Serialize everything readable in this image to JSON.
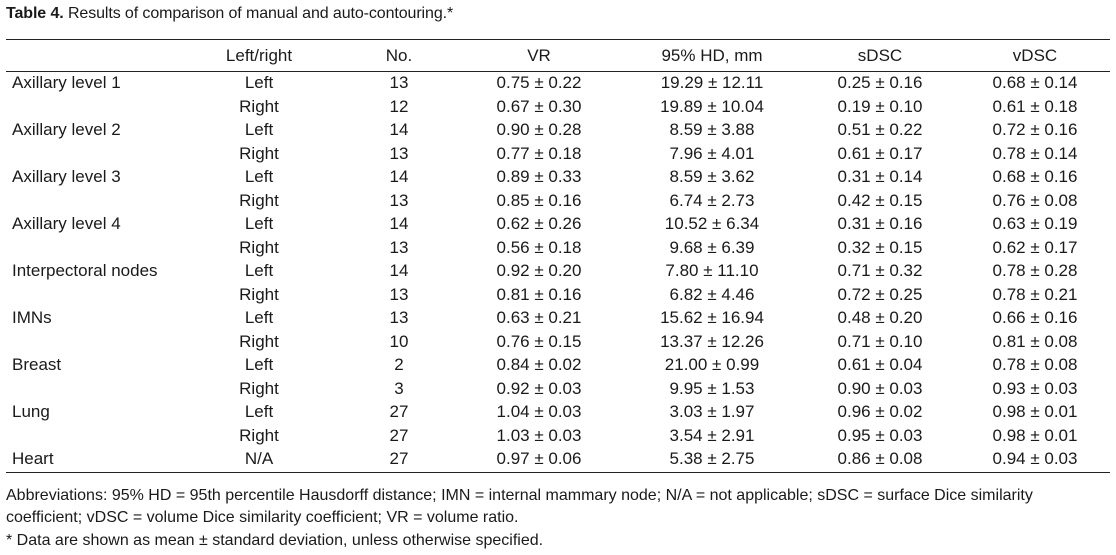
{
  "caption": {
    "label": "Table 4.",
    "text": " Results of comparison of manual and auto-contouring.*"
  },
  "columns": [
    "",
    "Left/right",
    "No.",
    "VR",
    "95% HD, mm",
    "sDSC",
    "vDSC"
  ],
  "rows": [
    {
      "structure": "Axillary level 1",
      "side": "Left",
      "no": "13",
      "vr": "0.75 ± 0.22",
      "hd": "19.29 ± 12.11",
      "sdsc": "0.25 ± 0.16",
      "vdsc": "0.68 ± 0.14"
    },
    {
      "structure": "",
      "side": "Right",
      "no": "12",
      "vr": "0.67 ± 0.30",
      "hd": "19.89 ± 10.04",
      "sdsc": "0.19 ± 0.10",
      "vdsc": "0.61 ± 0.18"
    },
    {
      "structure": "Axillary level 2",
      "side": "Left",
      "no": "14",
      "vr": "0.90 ± 0.28",
      "hd": "8.59 ± 3.88",
      "sdsc": "0.51 ± 0.22",
      "vdsc": "0.72 ± 0.16"
    },
    {
      "structure": "",
      "side": "Right",
      "no": "13",
      "vr": "0.77 ± 0.18",
      "hd": "7.96 ± 4.01",
      "sdsc": "0.61 ± 0.17",
      "vdsc": "0.78 ± 0.14"
    },
    {
      "structure": "Axillary level 3",
      "side": "Left",
      "no": "14",
      "vr": "0.89 ± 0.33",
      "hd": "8.59 ± 3.62",
      "sdsc": "0.31 ± 0.14",
      "vdsc": "0.68 ± 0.16"
    },
    {
      "structure": "",
      "side": "Right",
      "no": "13",
      "vr": "0.85 ± 0.16",
      "hd": "6.74 ± 2.73",
      "sdsc": "0.42 ± 0.15",
      "vdsc": "0.76 ± 0.08"
    },
    {
      "structure": "Axillary level 4",
      "side": "Left",
      "no": "14",
      "vr": "0.62 ± 0.26",
      "hd": "10.52 ± 6.34",
      "sdsc": "0.31 ± 0.16",
      "vdsc": "0.63 ± 0.19"
    },
    {
      "structure": "",
      "side": "Right",
      "no": "13",
      "vr": "0.56 ± 0.18",
      "hd": "9.68 ± 6.39",
      "sdsc": "0.32 ± 0.15",
      "vdsc": "0.62 ± 0.17"
    },
    {
      "structure": "Interpectoral nodes",
      "side": "Left",
      "no": "14",
      "vr": "0.92 ± 0.20",
      "hd": "7.80 ± 11.10",
      "sdsc": "0.71 ± 0.32",
      "vdsc": "0.78 ± 0.28"
    },
    {
      "structure": "",
      "side": "Right",
      "no": "13",
      "vr": "0.81 ± 0.16",
      "hd": "6.82 ± 4.46",
      "sdsc": "0.72 ± 0.25",
      "vdsc": "0.78 ± 0.21"
    },
    {
      "structure": "IMNs",
      "side": "Left",
      "no": "13",
      "vr": "0.63 ± 0.21",
      "hd": "15.62 ± 16.94",
      "sdsc": "0.48 ± 0.20",
      "vdsc": "0.66 ± 0.16"
    },
    {
      "structure": "",
      "side": "Right",
      "no": "10",
      "vr": "0.76 ± 0.15",
      "hd": "13.37 ± 12.26",
      "sdsc": "0.71 ± 0.10",
      "vdsc": "0.81 ± 0.08"
    },
    {
      "structure": "Breast",
      "side": "Left",
      "no": "2",
      "vr": "0.84 ± 0.02",
      "hd": "21.00 ± 0.99",
      "sdsc": "0.61 ± 0.04",
      "vdsc": "0.78 ± 0.08"
    },
    {
      "structure": "",
      "side": "Right",
      "no": "3",
      "vr": "0.92 ± 0.03",
      "hd": "9.95 ± 1.53",
      "sdsc": "0.90 ± 0.03",
      "vdsc": "0.93 ± 0.03"
    },
    {
      "structure": "Lung",
      "side": "Left",
      "no": "27",
      "vr": "1.04 ± 0.03",
      "hd": "3.03 ± 1.97",
      "sdsc": "0.96 ± 0.02",
      "vdsc": "0.98 ± 0.01"
    },
    {
      "structure": "",
      "side": "Right",
      "no": "27",
      "vr": "1.03 ± 0.03",
      "hd": "3.54 ± 2.91",
      "sdsc": "0.95 ± 0.03",
      "vdsc": "0.98 ± 0.01"
    },
    {
      "structure": "Heart",
      "side": "N/A",
      "no": "27",
      "vr": "0.97 ± 0.06",
      "hd": "5.38 ± 2.75",
      "sdsc": "0.86 ± 0.08",
      "vdsc": "0.94 ± 0.03"
    }
  ],
  "footnotes": {
    "abbreviations": "Abbreviations: 95% HD = 95th percentile Hausdorff distance; IMN = internal mammary node; N/A = not applicable; sDSC = surface Dice similarity coefficient; vDSC = volume Dice similarity coefficient; VR = volume ratio.",
    "note": "* Data are shown as mean ± standard deviation, unless otherwise specified."
  }
}
